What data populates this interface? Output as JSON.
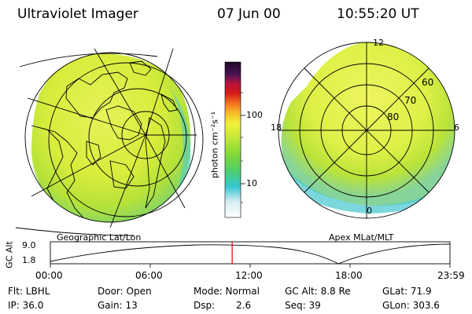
{
  "header": {
    "title": "Ultraviolet Imager",
    "date": "07 Jun 00",
    "time": "10:55:20 UT"
  },
  "left_map": {
    "label": "Geographic Lat/Lon"
  },
  "right_map": {
    "label": "Apex  MLat/MLT",
    "mlt_labels": {
      "top": "12",
      "left": "18",
      "right": "6",
      "bottom": "0"
    },
    "lat_labels": [
      "60",
      "70",
      "80"
    ]
  },
  "colorbar": {
    "unit_label": "photon cm⁻²s⁻¹",
    "ticks": [
      "100",
      "10"
    ]
  },
  "orbit_plot": {
    "ylabel": "GC Alt",
    "ymax": "9.0",
    "ymin": "1.8",
    "xticks": [
      "00:00",
      "06:00",
      "12:00",
      "18:00",
      "23:59"
    ],
    "current_time_fraction": 0.455
  },
  "status": {
    "flt": "Flt: LBHL",
    "ip": "IP: 36.0",
    "door": "Door: Open",
    "gain": "Gain: 13",
    "mode": "Mode: Normal",
    "dsp_label": "Dsp:",
    "dsp_value": "2.6",
    "gcalt": "GC Alt: 8.8 Re",
    "seq": "Seq: 39",
    "glat": "GLat:  71.9",
    "glon": "GLon: 303.6"
  }
}
